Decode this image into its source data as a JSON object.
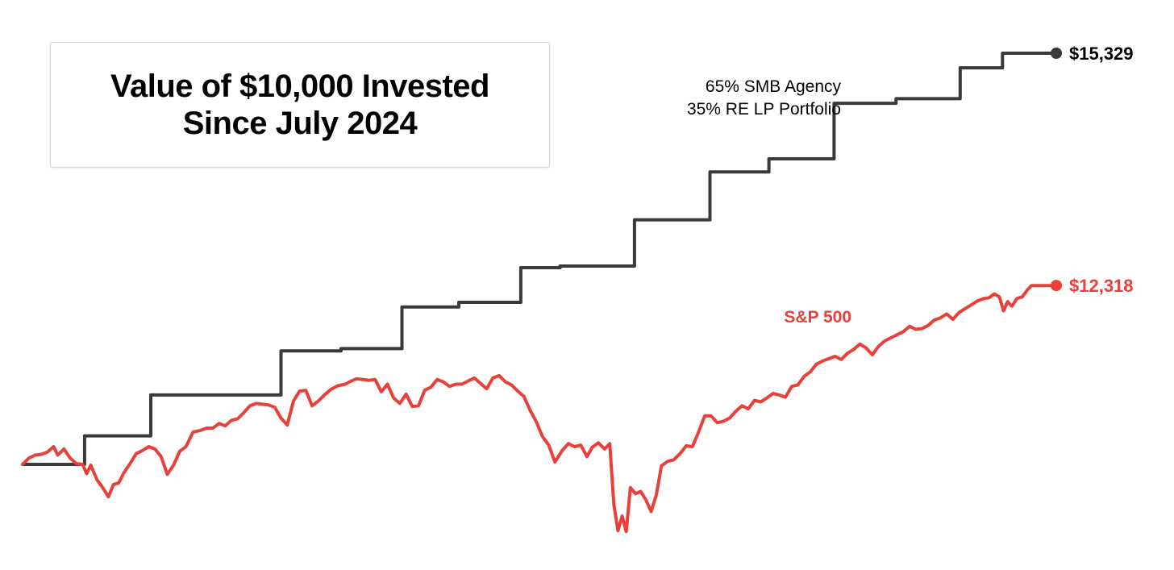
{
  "chart_data": {
    "type": "line",
    "title": "Value of $10,000 Invested\nSince July 2024",
    "xlabel": "",
    "ylabel": "",
    "grid": false,
    "legend": "inline labels",
    "ylim": [
      8200,
      15700
    ],
    "xlim": [
      0,
      100
    ],
    "series": [
      {
        "name": "65% SMB Agency\n35% RE LP Portfolio",
        "color": "#3a3a3a",
        "step": true,
        "end_label": "$15,329",
        "points": [
          [
            0,
            10000
          ],
          [
            6.0,
            10000
          ],
          [
            6.0,
            10370
          ],
          [
            12.4,
            10370
          ],
          [
            12.4,
            10900
          ],
          [
            25.0,
            10900
          ],
          [
            25.0,
            11470
          ],
          [
            30.8,
            11470
          ],
          [
            30.8,
            11500
          ],
          [
            36.7,
            11500
          ],
          [
            36.7,
            12040
          ],
          [
            42.2,
            12040
          ],
          [
            42.2,
            12100
          ],
          [
            48.2,
            12100
          ],
          [
            48.2,
            12550
          ],
          [
            52.0,
            12550
          ],
          [
            52.0,
            12570
          ],
          [
            59.2,
            12570
          ],
          [
            59.2,
            13170
          ],
          [
            66.5,
            13170
          ],
          [
            66.5,
            13790
          ],
          [
            72.2,
            13790
          ],
          [
            72.2,
            13960
          ],
          [
            78.5,
            13960
          ],
          [
            78.5,
            14680
          ],
          [
            84.5,
            14680
          ],
          [
            84.5,
            14740
          ],
          [
            90.7,
            14740
          ],
          [
            90.7,
            15140
          ],
          [
            94.8,
            15140
          ],
          [
            94.8,
            15329
          ],
          [
            100,
            15329
          ]
        ]
      },
      {
        "name": "S&P 500",
        "color": "#e8403a",
        "step": false,
        "end_label": "$12,318",
        "points": [
          [
            0,
            10000
          ],
          [
            0.6,
            10080
          ],
          [
            1.2,
            10120
          ],
          [
            1.8,
            10130
          ],
          [
            2.4,
            10160
          ],
          [
            3.0,
            10230
          ],
          [
            3.4,
            10120
          ],
          [
            4.0,
            10200
          ],
          [
            4.6,
            10080
          ],
          [
            5.2,
            10010
          ],
          [
            5.8,
            10000
          ],
          [
            6.2,
            9880
          ],
          [
            6.6,
            9990
          ],
          [
            7.2,
            9800
          ],
          [
            7.8,
            9690
          ],
          [
            8.3,
            9580
          ],
          [
            8.8,
            9740
          ],
          [
            9.3,
            9760
          ],
          [
            9.8,
            9890
          ],
          [
            10.4,
            10010
          ],
          [
            11.0,
            10140
          ],
          [
            11.6,
            10180
          ],
          [
            12.2,
            10230
          ],
          [
            12.8,
            10200
          ],
          [
            13.4,
            10100
          ],
          [
            14.0,
            9870
          ],
          [
            14.6,
            9990
          ],
          [
            15.2,
            10170
          ],
          [
            15.8,
            10230
          ],
          [
            16.5,
            10420
          ],
          [
            17.2,
            10440
          ],
          [
            17.8,
            10470
          ],
          [
            18.4,
            10470
          ],
          [
            19.0,
            10530
          ],
          [
            19.6,
            10500
          ],
          [
            20.2,
            10570
          ],
          [
            20.8,
            10590
          ],
          [
            21.4,
            10670
          ],
          [
            22.0,
            10760
          ],
          [
            22.6,
            10790
          ],
          [
            23.2,
            10780
          ],
          [
            23.8,
            10770
          ],
          [
            24.4,
            10740
          ],
          [
            25.0,
            10600
          ],
          [
            25.6,
            10510
          ],
          [
            26.2,
            10820
          ],
          [
            26.8,
            10950
          ],
          [
            27.4,
            10960
          ],
          [
            28.0,
            10760
          ],
          [
            28.6,
            10820
          ],
          [
            29.2,
            10900
          ],
          [
            29.8,
            10970
          ],
          [
            30.5,
            11020
          ],
          [
            31.2,
            11040
          ],
          [
            31.8,
            11080
          ],
          [
            32.3,
            11110
          ],
          [
            32.9,
            11100
          ],
          [
            33.5,
            11090
          ],
          [
            34.1,
            11100
          ],
          [
            34.7,
            10940
          ],
          [
            35.3,
            11040
          ],
          [
            35.9,
            10860
          ],
          [
            36.5,
            10790
          ],
          [
            37.1,
            10910
          ],
          [
            37.7,
            10750
          ],
          [
            38.3,
            10760
          ],
          [
            38.9,
            10960
          ],
          [
            39.5,
            11000
          ],
          [
            40.1,
            11100
          ],
          [
            40.7,
            11070
          ],
          [
            41.3,
            11010
          ],
          [
            41.9,
            11040
          ],
          [
            42.5,
            11040
          ],
          [
            43.1,
            11080
          ],
          [
            43.7,
            11120
          ],
          [
            44.3,
            11050
          ],
          [
            44.9,
            10980
          ],
          [
            45.5,
            11120
          ],
          [
            46.1,
            11150
          ],
          [
            46.7,
            11070
          ],
          [
            47.3,
            11030
          ],
          [
            47.9,
            10950
          ],
          [
            48.5,
            10880
          ],
          [
            49.1,
            10700
          ],
          [
            49.7,
            10550
          ],
          [
            50.3,
            10360
          ],
          [
            50.9,
            10250
          ],
          [
            51.5,
            10030
          ],
          [
            52.2,
            10180
          ],
          [
            52.8,
            10270
          ],
          [
            53.4,
            10230
          ],
          [
            54.0,
            10250
          ],
          [
            54.6,
            10100
          ],
          [
            55.1,
            10220
          ],
          [
            55.7,
            10280
          ],
          [
            56.3,
            10200
          ],
          [
            56.8,
            10270
          ],
          [
            57.2,
            9480
          ],
          [
            57.6,
            9140
          ],
          [
            58.0,
            9330
          ],
          [
            58.4,
            9130
          ],
          [
            58.8,
            9700
          ],
          [
            59.3,
            9620
          ],
          [
            59.8,
            9650
          ],
          [
            60.3,
            9540
          ],
          [
            60.8,
            9390
          ],
          [
            61.3,
            9600
          ],
          [
            61.8,
            9980
          ],
          [
            62.4,
            10040
          ],
          [
            63.0,
            10060
          ],
          [
            63.6,
            10140
          ],
          [
            64.2,
            10240
          ],
          [
            64.8,
            10230
          ],
          [
            65.4,
            10420
          ],
          [
            66.0,
            10630
          ],
          [
            66.6,
            10630
          ],
          [
            67.2,
            10540
          ],
          [
            67.8,
            10560
          ],
          [
            68.4,
            10600
          ],
          [
            69.0,
            10690
          ],
          [
            69.6,
            10760
          ],
          [
            70.2,
            10720
          ],
          [
            70.8,
            10830
          ],
          [
            71.4,
            10810
          ],
          [
            72.0,
            10860
          ],
          [
            72.6,
            10920
          ],
          [
            73.2,
            10900
          ],
          [
            73.8,
            10870
          ],
          [
            74.4,
            11010
          ],
          [
            75.0,
            11030
          ],
          [
            75.6,
            11140
          ],
          [
            76.2,
            11200
          ],
          [
            76.8,
            11300
          ],
          [
            77.4,
            11340
          ],
          [
            78.0,
            11370
          ],
          [
            78.6,
            11400
          ],
          [
            79.2,
            11360
          ],
          [
            79.8,
            11440
          ],
          [
            80.4,
            11490
          ],
          [
            81.0,
            11560
          ],
          [
            81.6,
            11510
          ],
          [
            82.2,
            11420
          ],
          [
            82.8,
            11530
          ],
          [
            83.4,
            11600
          ],
          [
            84.0,
            11640
          ],
          [
            84.6,
            11680
          ],
          [
            85.2,
            11720
          ],
          [
            85.8,
            11790
          ],
          [
            86.4,
            11750
          ],
          [
            87.0,
            11760
          ],
          [
            87.6,
            11800
          ],
          [
            88.2,
            11870
          ],
          [
            88.8,
            11900
          ],
          [
            89.4,
            11950
          ],
          [
            90.0,
            11880
          ],
          [
            90.6,
            11970
          ],
          [
            91.2,
            12020
          ],
          [
            91.8,
            12070
          ],
          [
            92.4,
            12120
          ],
          [
            93.0,
            12150
          ],
          [
            93.5,
            12160
          ],
          [
            94.0,
            12210
          ],
          [
            94.5,
            12170
          ],
          [
            94.9,
            11990
          ],
          [
            95.3,
            12110
          ],
          [
            95.7,
            12050
          ],
          [
            96.2,
            12150
          ],
          [
            96.7,
            12170
          ],
          [
            97.2,
            12260
          ],
          [
            97.6,
            12318
          ],
          [
            100,
            12318
          ]
        ]
      }
    ]
  }
}
